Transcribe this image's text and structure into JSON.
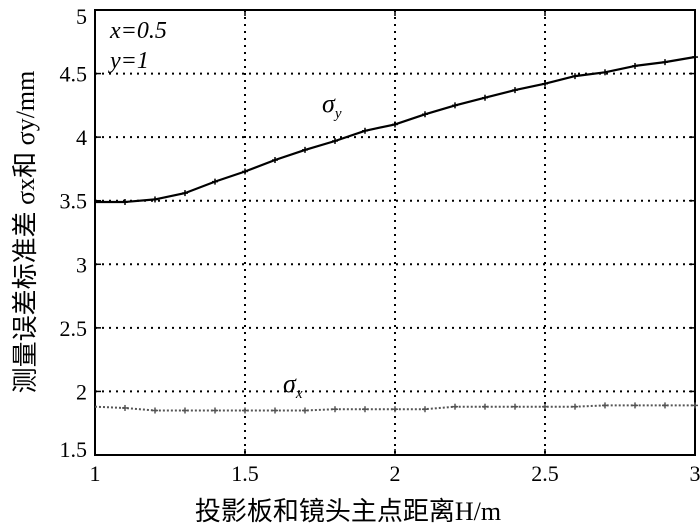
{
  "chart_data": {
    "type": "line",
    "xlabel": "投影板和镜头主点距离H/m",
    "ylabel": "测量误差标准差 σx和 σy/mm",
    "xlim": [
      1,
      3
    ],
    "ylim": [
      1.5,
      5
    ],
    "xticks": [
      "1",
      "1.5",
      "2",
      "2.5",
      "3"
    ],
    "yticks": [
      "1.5",
      "2",
      "2.5",
      "3",
      "3.5",
      "4",
      "4.5",
      "5"
    ],
    "grid": true,
    "annotations": {
      "params_x": "x=0.5",
      "params_y": "y=1"
    },
    "series": [
      {
        "name": "σy",
        "label_main": "σ",
        "label_sub": "y",
        "color": "#000000",
        "style": "solid",
        "x": [
          1.0,
          1.1,
          1.2,
          1.3,
          1.4,
          1.5,
          1.6,
          1.7,
          1.8,
          1.9,
          2.0,
          2.1,
          2.2,
          2.3,
          2.4,
          2.5,
          2.6,
          2.7,
          2.8,
          2.9,
          3.0
        ],
        "values": [
          3.49,
          3.49,
          3.51,
          3.56,
          3.65,
          3.73,
          3.82,
          3.9,
          3.97,
          4.05,
          4.1,
          4.18,
          4.25,
          4.31,
          4.37,
          4.42,
          4.48,
          4.51,
          4.56,
          4.59,
          4.63
        ]
      },
      {
        "name": "σx",
        "label_main": "σ",
        "label_sub": "x",
        "color": "#555555",
        "style": "dotted",
        "x": [
          1.0,
          1.1,
          1.2,
          1.3,
          1.4,
          1.5,
          1.6,
          1.7,
          1.8,
          1.9,
          2.0,
          2.1,
          2.2,
          2.3,
          2.4,
          2.5,
          2.6,
          2.7,
          2.8,
          2.9,
          3.0
        ],
        "values": [
          1.88,
          1.87,
          1.85,
          1.85,
          1.85,
          1.85,
          1.85,
          1.85,
          1.86,
          1.86,
          1.86,
          1.86,
          1.88,
          1.88,
          1.88,
          1.88,
          1.88,
          1.89,
          1.89,
          1.89,
          1.89
        ]
      }
    ]
  }
}
